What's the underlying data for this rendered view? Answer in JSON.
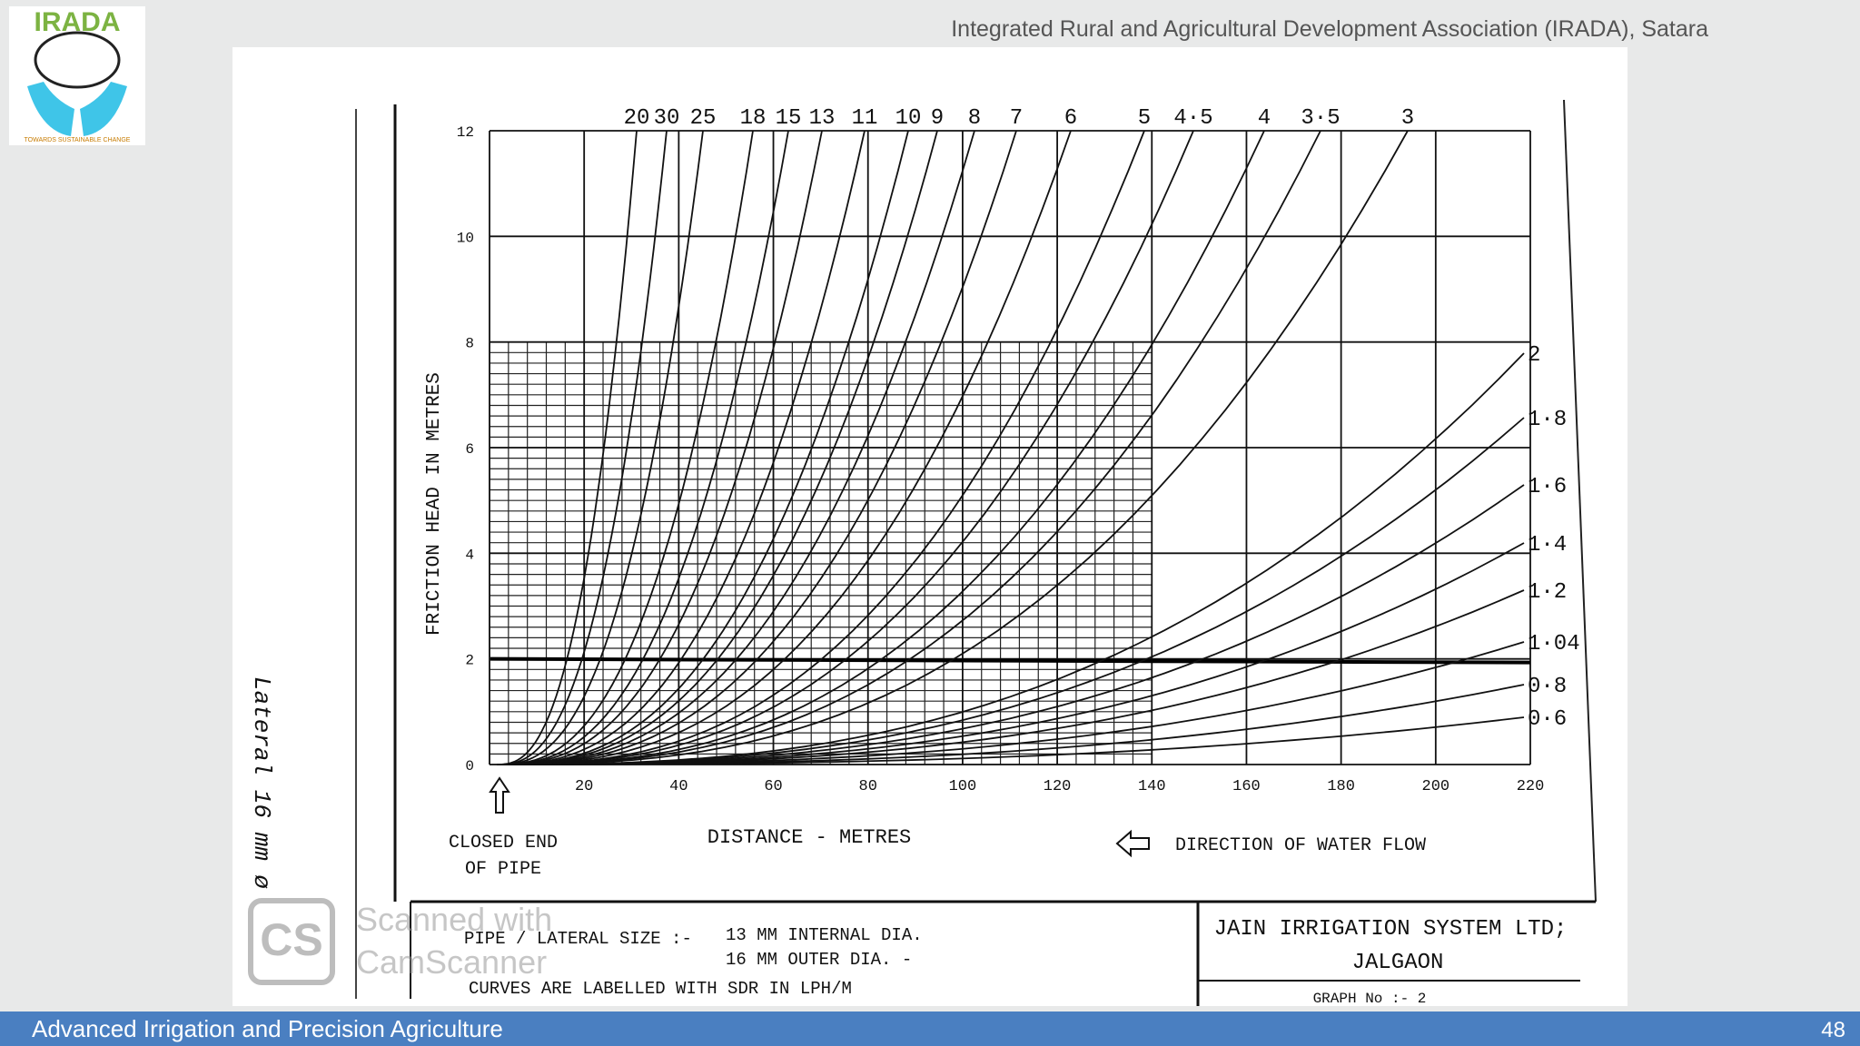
{
  "header": {
    "title": "Integrated Rural and Agricultural Development Association (IRADA), Satara"
  },
  "logo": {
    "name": "IRADA",
    "tagline": "TOWARDS SUSTAINABLE CHANGE"
  },
  "graph": {
    "y_axis_label": "FRICTION HEAD IN METRES",
    "x_axis_label": "DISTANCE - METRES",
    "y_ticks": [
      "0",
      "2",
      "4",
      "6",
      "8",
      "10",
      "12"
    ],
    "x_ticks": [
      "20",
      "40",
      "60",
      "80",
      "100",
      "120",
      "140",
      "160",
      "180",
      "200",
      "220"
    ],
    "top_curve_labels": [
      "20",
      "30",
      "25",
      "18",
      "15",
      "13",
      "11",
      "10",
      "9",
      "8",
      "7",
      "6",
      "5",
      "4·5",
      "4",
      "3·5",
      "3"
    ],
    "right_curve_labels": [
      "2",
      "1·8",
      "1·6",
      "1·4",
      "1·2",
      "1·04",
      "0·8",
      "0·6"
    ],
    "closed_end_1": "CLOSED END",
    "closed_end_2": "OF PIPE",
    "flow_direction": "DIRECTION OF WATER FLOW",
    "side_note": "Lateral 16 mm ø",
    "pipe_size_label": "PIPE / LATERAL SIZE :-",
    "internal_dia": "13 MM INTERNAL DIA.",
    "outer_dia": "16 MM OUTER DIA. -",
    "curves_note": "CURVES ARE LABELLED WITH SDR IN LPH/M",
    "company": "JAIN IRRIGATION SYSTEM LTD;",
    "city": "JALGAON",
    "graph_no": "GRAPH No :- 2"
  },
  "watermark": {
    "logo": "CS",
    "line1": "Scanned with",
    "line2": "CamScanner"
  },
  "footer": {
    "title": "Advanced Irrigation and Precision Agriculture",
    "page": "48"
  }
}
